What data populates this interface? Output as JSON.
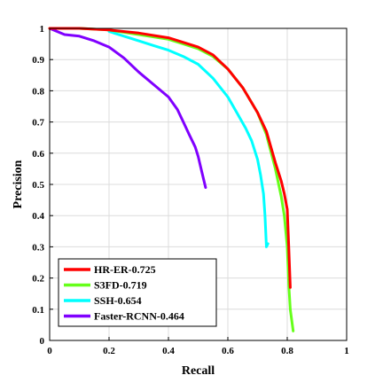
{
  "chart_data": {
    "type": "line",
    "title": "",
    "xlabel": "Recall",
    "ylabel": "Precision",
    "xlim": [
      0,
      1
    ],
    "ylim": [
      0,
      1
    ],
    "xticks": [
      "0",
      "0.2",
      "0.4",
      "0.6",
      "0.8",
      "1"
    ],
    "yticks": [
      "0",
      "0.1",
      "0.2",
      "0.3",
      "0.4",
      "0.5",
      "0.6",
      "0.7",
      "0.8",
      "0.9",
      "1"
    ],
    "grid": true,
    "legend_position": "bottom-left",
    "series": [
      {
        "name": "HR-ER-0.725",
        "color": "#ff0000",
        "x": [
          0,
          0.1,
          0.2,
          0.3,
          0.4,
          0.45,
          0.5,
          0.55,
          0.6,
          0.65,
          0.7,
          0.73,
          0.76,
          0.78,
          0.79,
          0.8,
          0.805,
          0.81
        ],
        "y": [
          1.0,
          1.0,
          0.995,
          0.985,
          0.97,
          0.955,
          0.94,
          0.915,
          0.87,
          0.81,
          0.73,
          0.67,
          0.57,
          0.51,
          0.47,
          0.42,
          0.3,
          0.17
        ]
      },
      {
        "name": "S3FD-0.719",
        "color": "#66ff1a",
        "x": [
          0,
          0.1,
          0.2,
          0.3,
          0.4,
          0.45,
          0.5,
          0.55,
          0.6,
          0.65,
          0.7,
          0.73,
          0.76,
          0.78,
          0.79,
          0.8,
          0.805,
          0.81,
          0.82
        ],
        "y": [
          1.0,
          1.0,
          0.995,
          0.98,
          0.965,
          0.95,
          0.935,
          0.91,
          0.87,
          0.81,
          0.73,
          0.66,
          0.55,
          0.46,
          0.4,
          0.3,
          0.18,
          0.1,
          0.03
        ]
      },
      {
        "name": "SSH-0.654",
        "color": "#00ffff",
        "x": [
          0.2,
          0.25,
          0.3,
          0.35,
          0.4,
          0.45,
          0.5,
          0.55,
          0.6,
          0.63,
          0.66,
          0.68,
          0.7,
          0.71,
          0.72,
          0.725,
          0.73,
          0.735
        ],
        "y": [
          0.99,
          0.975,
          0.96,
          0.945,
          0.93,
          0.91,
          0.885,
          0.84,
          0.78,
          0.73,
          0.68,
          0.64,
          0.58,
          0.53,
          0.47,
          0.4,
          0.3,
          0.31
        ]
      },
      {
        "name": "Faster-RCNN-0.464",
        "color": "#8000ff",
        "x": [
          0,
          0.05,
          0.1,
          0.15,
          0.2,
          0.25,
          0.3,
          0.35,
          0.4,
          0.43,
          0.45,
          0.47,
          0.49,
          0.5,
          0.51,
          0.52,
          0.525
        ],
        "y": [
          1.0,
          0.98,
          0.975,
          0.96,
          0.94,
          0.905,
          0.86,
          0.82,
          0.78,
          0.74,
          0.7,
          0.66,
          0.62,
          0.59,
          0.55,
          0.51,
          0.49
        ]
      }
    ]
  }
}
